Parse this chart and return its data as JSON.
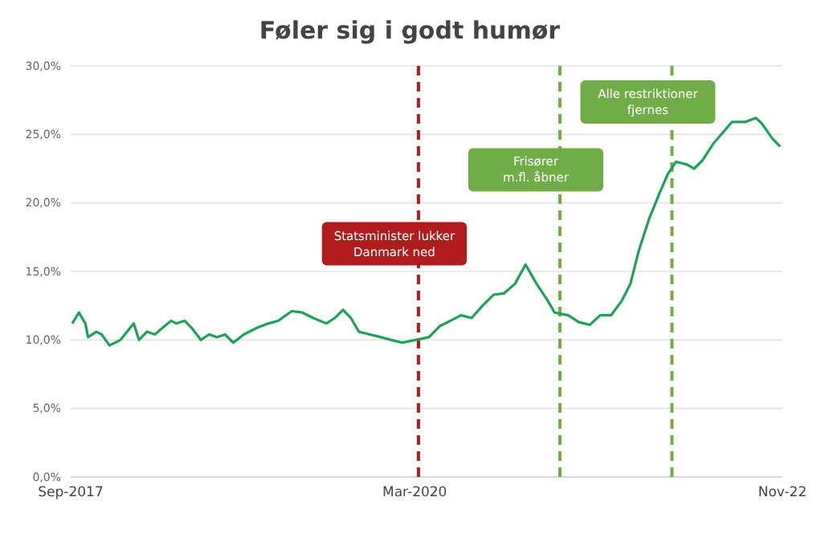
{
  "chart_data": {
    "type": "line",
    "title": "Føler sig i godt humør",
    "xlim": [
      "2017-09-01",
      "2022-11-01"
    ],
    "xticks": [
      {
        "value": "2017-09-01",
        "label": "Sep-2017"
      },
      {
        "value": "2020-03-01",
        "label": "Mar-2020"
      },
      {
        "value": "2022-11-01",
        "label": "Nov-22"
      }
    ],
    "ylim": [
      0,
      30
    ],
    "yticks": [
      {
        "value": 0,
        "label": "0,0%"
      },
      {
        "value": 5,
        "label": "5,0%"
      },
      {
        "value": 10,
        "label": "10,0%"
      },
      {
        "value": 15,
        "label": "15,0%"
      },
      {
        "value": 20,
        "label": "20,0%"
      },
      {
        "value": 25,
        "label": "25,0%"
      },
      {
        "value": 30,
        "label": "30,0%"
      }
    ],
    "grid": "y",
    "marker": "none",
    "line_style": "solid",
    "series": [
      {
        "color": "#21a05a",
        "x": [
          "2017-09-05",
          "2017-09-23",
          "2017-10-10",
          "2017-10-17",
          "2017-11-08",
          "2017-11-22",
          "2017-12-13",
          "2018-01-11",
          "2018-02-15",
          "2018-03-01",
          "2018-03-22",
          "2018-04-12",
          "2018-05-03",
          "2018-05-25",
          "2018-06-08",
          "2018-06-30",
          "2018-07-21",
          "2018-08-12",
          "2018-09-03",
          "2018-09-24",
          "2018-10-15",
          "2018-11-06",
          "2018-12-04",
          "2019-01-09",
          "2019-02-07",
          "2019-03-05",
          "2019-04-10",
          "2019-05-08",
          "2019-06-06",
          "2019-07-11",
          "2019-08-02",
          "2019-08-24",
          "2019-09-14",
          "2019-10-05",
          "2019-11-03",
          "2019-12-02",
          "2019-12-30",
          "2020-01-28",
          "2020-03-03",
          "2020-04-08",
          "2020-05-06",
          "2020-06-04",
          "2020-07-02",
          "2020-07-30",
          "2020-08-28",
          "2020-09-26",
          "2020-10-24",
          "2020-11-22",
          "2020-12-20",
          "2021-01-18",
          "2021-02-16",
          "2021-03-07",
          "2021-04-12",
          "2021-05-10",
          "2021-06-08",
          "2021-07-06",
          "2021-08-04",
          "2021-09-02",
          "2021-09-24",
          "2021-10-15",
          "2021-11-12",
          "2021-12-10",
          "2022-01-01",
          "2022-01-23",
          "2022-02-21",
          "2022-03-12",
          "2022-04-03",
          "2022-05-01",
          "2022-05-29",
          "2022-06-20",
          "2022-07-25",
          "2022-08-23",
          "2022-09-07",
          "2022-10-05",
          "2022-10-26"
        ],
        "values": [
          11.2,
          12.0,
          11.2,
          10.2,
          10.6,
          10.4,
          9.6,
          10.0,
          11.2,
          10.0,
          10.6,
          10.4,
          10.9,
          11.4,
          11.2,
          11.4,
          10.8,
          10.0,
          10.4,
          10.2,
          10.4,
          9.8,
          10.4,
          10.9,
          11.2,
          11.4,
          12.1,
          12.0,
          11.6,
          11.2,
          11.6,
          12.2,
          11.6,
          10.6,
          10.4,
          10.2,
          10.0,
          9.8,
          10.0,
          10.2,
          11.0,
          11.4,
          11.8,
          11.6,
          12.5,
          13.3,
          13.4,
          14.1,
          15.5,
          14.1,
          12.9,
          12.0,
          11.8,
          11.3,
          11.1,
          11.8,
          11.8,
          12.9,
          14.1,
          16.4,
          18.8,
          20.7,
          22.1,
          23.0,
          22.8,
          22.5,
          23.1,
          24.3,
          25.2,
          25.9,
          25.9,
          26.2,
          25.8,
          24.7,
          24.1
        ]
      }
    ],
    "ref_lines": [
      {
        "axis": "x",
        "value": "2020-03-11",
        "label": "Statsminister lukker\nDanmark ned",
        "color": "#b01c1c",
        "line_style": "dashed"
      },
      {
        "axis": "x",
        "value": "2021-03-21",
        "label": "Frisører\nm.fl. åbner",
        "color": "#70ad47",
        "line_style": "dashed"
      },
      {
        "axis": "x",
        "value": "2022-01-12",
        "label": "Alle restriktioner\nfjernes",
        "color": "#70ad47",
        "line_style": "dashed"
      }
    ]
  }
}
